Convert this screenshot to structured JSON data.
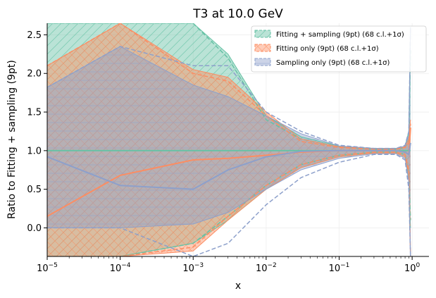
{
  "chart_data": {
    "type": "line",
    "title": "T3 at 10.0 GeV",
    "xlabel": "x",
    "ylabel": "Ratio to Fitting + sampling (9pt)",
    "xscale": "log",
    "xlim": [
      1e-05,
      1.7
    ],
    "ylim": [
      -0.37,
      2.65
    ],
    "grid": true,
    "legend_position": "top-right",
    "x_ticks": [
      {
        "value": 1e-05,
        "base": "10",
        "exp": "−5"
      },
      {
        "value": 0.0001,
        "base": "10",
        "exp": "−4"
      },
      {
        "value": 0.001,
        "base": "10",
        "exp": "−3"
      },
      {
        "value": 0.01,
        "base": "10",
        "exp": "−2"
      },
      {
        "value": 0.1,
        "base": "10",
        "exp": "−1"
      },
      {
        "value": 1,
        "base": "10",
        "exp": "0"
      }
    ],
    "y_ticks": [
      {
        "value": 0.0,
        "label": "0.0"
      },
      {
        "value": 0.5,
        "label": "0.5"
      },
      {
        "value": 1.0,
        "label": "1.0"
      },
      {
        "value": 1.5,
        "label": "1.5"
      },
      {
        "value": 2.0,
        "label": "2.0"
      },
      {
        "value": 2.5,
        "label": "2.5"
      }
    ],
    "series": [
      {
        "name": "Fitting + sampling (9pt) (68 c.l.+1σ)",
        "color": "#66c2a5",
        "hatch": "/",
        "x": [
          1e-05,
          0.0001,
          0.001,
          0.003,
          0.01,
          0.03,
          0.1,
          0.3,
          0.6,
          0.8,
          0.9,
          0.95
        ],
        "central": [
          1.0,
          1.0,
          1.0,
          1.0,
          1.0,
          1.0,
          1.0,
          1.0,
          1.0,
          1.0,
          1.0,
          1.0
        ],
        "upper": [
          2.65,
          2.65,
          2.65,
          2.25,
          1.45,
          1.18,
          1.06,
          1.03,
          1.03,
          1.06,
          1.25,
          2.6
        ],
        "lower": [
          -0.37,
          -0.37,
          -0.2,
          0.1,
          0.5,
          0.78,
          0.92,
          0.97,
          0.97,
          0.92,
          0.6,
          0.0
        ],
        "band68_upper": [
          2.65,
          2.65,
          2.65,
          2.2,
          1.4,
          1.15,
          1.05,
          1.02,
          1.02,
          1.04,
          1.15,
          2.3
        ],
        "band68_lower": [
          -0.37,
          -0.37,
          -0.2,
          0.15,
          0.55,
          0.82,
          0.94,
          0.98,
          0.98,
          0.95,
          0.7,
          0.1
        ]
      },
      {
        "name": "Fitting only (9pt) (68 c.l.+1σ)",
        "color": "#fc8d62",
        "hatch": "x",
        "x": [
          1e-05,
          0.0001,
          0.001,
          0.003,
          0.01,
          0.03,
          0.1,
          0.3,
          0.6,
          0.8,
          0.9,
          0.95
        ],
        "central": [
          0.15,
          0.68,
          0.88,
          0.9,
          0.94,
          0.98,
          1.0,
          1.0,
          1.0,
          0.98,
          0.95,
          1.3
        ],
        "upper": [
          2.1,
          2.65,
          2.05,
          1.95,
          1.5,
          1.15,
          1.05,
          1.03,
          1.03,
          1.05,
          1.15,
          1.4
        ],
        "lower": [
          -0.37,
          -0.37,
          -0.3,
          0.1,
          0.5,
          0.78,
          0.92,
          0.97,
          0.97,
          0.92,
          0.7,
          -0.37
        ],
        "band68_upper": [
          2.1,
          2.65,
          2.0,
          1.9,
          1.45,
          1.12,
          1.04,
          1.02,
          1.02,
          1.04,
          1.1,
          1.35
        ],
        "band68_lower": [
          -0.37,
          -0.37,
          -0.25,
          0.15,
          0.55,
          0.82,
          0.94,
          0.98,
          0.98,
          0.95,
          0.75,
          -0.37
        ]
      },
      {
        "name": "Sampling only (9pt) (68 c.l.+1σ)",
        "color": "#8da0cb",
        "hatch": "-",
        "x": [
          1e-05,
          0.0001,
          0.001,
          0.003,
          0.01,
          0.03,
          0.1,
          0.3,
          0.6,
          0.8,
          0.9,
          0.95
        ],
        "central": [
          0.92,
          0.55,
          0.5,
          0.75,
          0.92,
          0.99,
          1.0,
          1.0,
          1.0,
          0.98,
          0.95,
          1.1
        ],
        "upper": [
          1.82,
          2.35,
          1.85,
          1.7,
          1.45,
          1.22,
          1.06,
          1.03,
          1.03,
          1.06,
          1.2,
          2.6
        ],
        "lower": [
          0.0,
          0.0,
          0.05,
          0.2,
          0.5,
          0.75,
          0.9,
          0.96,
          0.96,
          0.9,
          0.6,
          -0.37
        ],
        "band68_upper": [
          1.82,
          2.35,
          2.1,
          2.1,
          1.5,
          1.25,
          1.07,
          1.03,
          1.03,
          1.07,
          1.25,
          2.6
        ],
        "band68_lower": [
          0.0,
          0.0,
          -0.37,
          -0.2,
          0.3,
          0.65,
          0.85,
          0.95,
          0.95,
          0.88,
          0.5,
          -0.37
        ]
      }
    ]
  }
}
